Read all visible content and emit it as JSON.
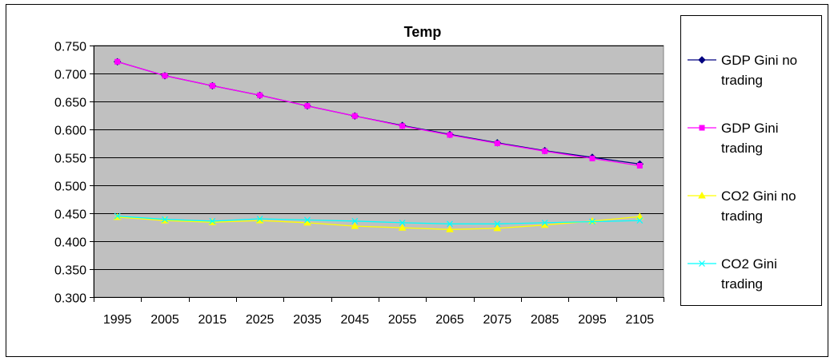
{
  "chart_data": {
    "type": "line",
    "title": "Temp",
    "xlabel": "",
    "ylabel": "",
    "categories": [
      "1995",
      "2005",
      "2015",
      "2025",
      "2035",
      "2045",
      "2055",
      "2065",
      "2075",
      "2085",
      "2095",
      "2105"
    ],
    "ylim": [
      0.3,
      0.75
    ],
    "yticks": [
      "0.300",
      "0.350",
      "0.400",
      "0.450",
      "0.500",
      "0.550",
      "0.600",
      "0.650",
      "0.700",
      "0.750"
    ],
    "grid": true,
    "plot_background": "#C0C0C0",
    "legend_position": "right",
    "series": [
      {
        "name": "GDP Gini no trading",
        "legend_lines": [
          "GDP Gini no",
          "trading"
        ],
        "color": "#000080",
        "marker": "diamond",
        "values": [
          0.721,
          0.696,
          0.678,
          0.661,
          0.642,
          0.624,
          0.607,
          0.591,
          0.576,
          0.562,
          0.55,
          0.538
        ]
      },
      {
        "name": "GDP Gini trading",
        "legend_lines": [
          "GDP Gini",
          "trading"
        ],
        "color": "#FF00FF",
        "marker": "square",
        "values": [
          0.721,
          0.696,
          0.678,
          0.661,
          0.642,
          0.624,
          0.606,
          0.59,
          0.575,
          0.561,
          0.548,
          0.535
        ]
      },
      {
        "name": "CO2 Gini no trading",
        "legend_lines": [
          "CO2 Gini no",
          "trading"
        ],
        "color": "#FFFF00",
        "marker": "triangle",
        "values": [
          0.443,
          0.437,
          0.434,
          0.437,
          0.433,
          0.427,
          0.424,
          0.421,
          0.423,
          0.429,
          0.436,
          0.444
        ]
      },
      {
        "name": "CO2 Gini trading",
        "legend_lines": [
          "CO2 Gini",
          "trading"
        ],
        "color": "#00FFFF",
        "marker": "x",
        "values": [
          0.445,
          0.439,
          0.436,
          0.44,
          0.438,
          0.436,
          0.433,
          0.431,
          0.431,
          0.433,
          0.435,
          0.437
        ]
      }
    ]
  }
}
